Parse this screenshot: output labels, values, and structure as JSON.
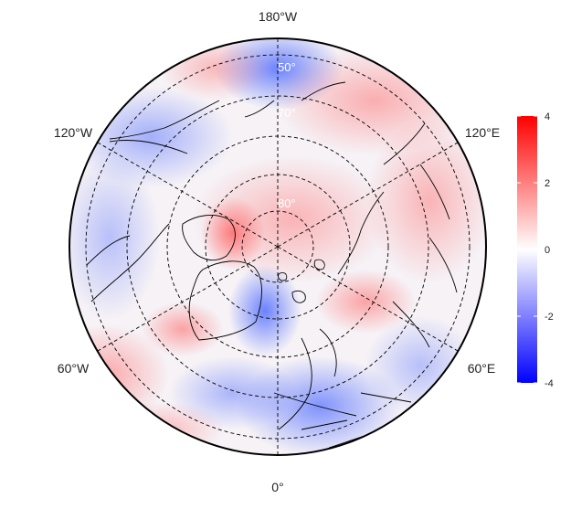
{
  "map": {
    "projection": "north-polar-stereographic",
    "field_colormap": {
      "low": "#0000ff",
      "mid": "#ffffff",
      "high": "#ff0000"
    },
    "longitude_labels": {
      "top": "180°W",
      "bottom": "0°",
      "upper_left": "120°W",
      "upper_right": "120°E",
      "lower_left": "60°W",
      "lower_right": "60°E"
    },
    "latitude_labels": [
      "50°",
      "70°",
      "80°"
    ],
    "graticule": {
      "latitudes": [
        40,
        50,
        60,
        70,
        80
      ],
      "longitude_step": 60,
      "style": "dashed"
    }
  },
  "colorbar": {
    "min": -4,
    "max": 4,
    "ticks": [
      "4",
      "2",
      "0",
      "-2",
      "-4"
    ],
    "colors": {
      "low": "#0000ff",
      "mid": "#ffffff",
      "high": "#ff0000"
    }
  }
}
